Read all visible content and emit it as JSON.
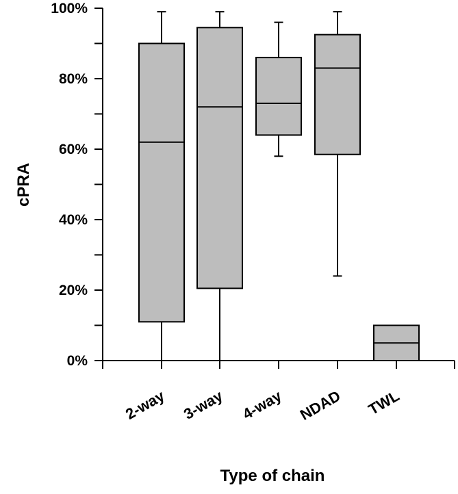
{
  "chart_data": {
    "type": "boxplot",
    "title": "",
    "xlabel": "Type of chain",
    "ylabel": "cPRA",
    "ylim": [
      0,
      100
    ],
    "yticks": [
      0,
      20,
      40,
      60,
      80,
      100
    ],
    "ytick_labels": [
      "0%",
      "20%",
      "40%",
      "60%",
      "80%",
      "100%"
    ],
    "categories": [
      "2-way",
      "3-way",
      "4-way",
      "NDAD",
      "TWL"
    ],
    "boxes": [
      {
        "category": "2-way",
        "min": 0,
        "q1": 11,
        "median": 62,
        "q3": 90,
        "max": 99
      },
      {
        "category": "3-way",
        "min": 0,
        "q1": 20.5,
        "median": 72,
        "q3": 94.5,
        "max": 99
      },
      {
        "category": "4-way",
        "min": 58,
        "q1": 64,
        "median": 73,
        "q3": 86,
        "max": 96
      },
      {
        "category": "NDAD",
        "min": 24,
        "q1": 58.5,
        "median": 83,
        "q3": 92.5,
        "max": 99
      },
      {
        "category": "TWL",
        "min": 0,
        "q1": 0,
        "median": 5,
        "q3": 10,
        "max": 10
      }
    ],
    "box_fill": "#bdbdbd",
    "line_color": "#000000",
    "grid": false,
    "legend": "none"
  }
}
